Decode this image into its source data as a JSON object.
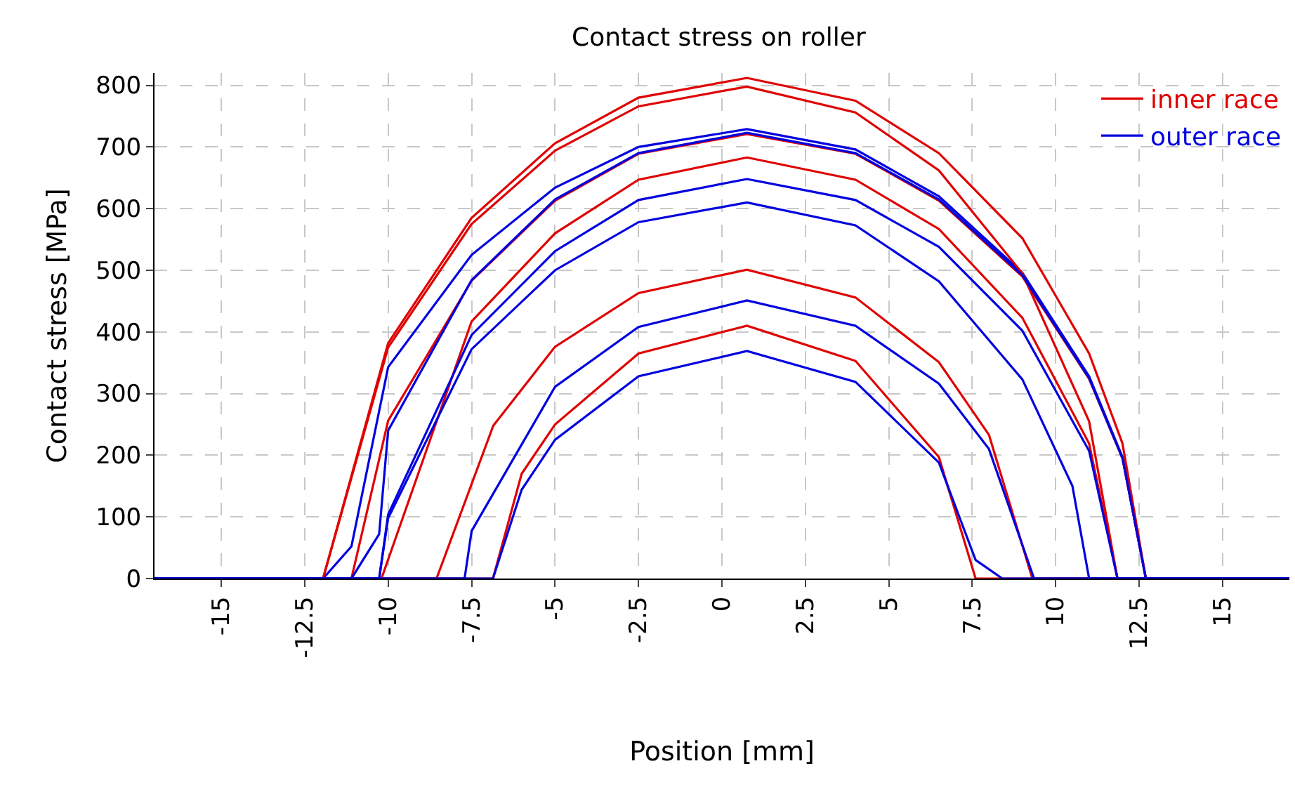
{
  "chart_data": {
    "type": "line",
    "title": "Contact stress on roller",
    "xlabel": "Position [mm]",
    "ylabel": "Contact stress [MPa]",
    "xlim": [
      -17,
      17
    ],
    "ylim": [
      0,
      820
    ],
    "xticks": [
      -15,
      -12.5,
      -10,
      -7.5,
      -5,
      -2.5,
      0,
      2.5,
      5,
      7.5,
      10,
      12.5,
      15
    ],
    "yticks": [
      0,
      100,
      200,
      300,
      400,
      500,
      600,
      700,
      800
    ],
    "grid": true,
    "legend": "top right",
    "marker": "none",
    "line_style": "solid",
    "series": [
      {
        "name": "inner race",
        "color": "#e00000",
        "x": [
          -17,
          -11.95,
          -10,
          -7.5,
          -5,
          -2.5,
          0.75,
          4,
          6.5,
          9,
          11,
          12,
          12.7,
          17
        ],
        "values": [
          0,
          0,
          382,
          585,
          706,
          780,
          812,
          775,
          690,
          552,
          365,
          219,
          0,
          0
        ]
      },
      {
        "name": "outer race",
        "color": "#0000e0",
        "x": [
          -17,
          -11.95,
          -11.1,
          -10,
          -7.5,
          -5,
          -2.5,
          0.75,
          4,
          6.5,
          9,
          11,
          12,
          12.7,
          17
        ],
        "values": [
          0,
          0,
          52,
          343,
          525,
          634,
          700,
          729,
          696,
          620,
          496,
          328,
          197,
          0,
          0
        ]
      },
      {
        "color": "#e00000",
        "x": [
          -17,
          -11.95,
          -10,
          -7.5,
          -5,
          -2.5,
          0.75,
          4,
          6.5,
          9,
          11,
          11.85,
          17
        ],
        "values": [
          0,
          0,
          375,
          575,
          694,
          766,
          798,
          756,
          662,
          495,
          255,
          0,
          0
        ]
      },
      {
        "color": "#e00000",
        "x": [
          -17,
          -11.1,
          -10,
          -7.5,
          -5,
          -2.5,
          0.75,
          4,
          6.5,
          9,
          11,
          12,
          12.7,
          17
        ],
        "values": [
          0,
          0,
          256,
          483,
          613,
          689,
          721,
          689,
          613,
          490,
          324,
          195,
          0,
          0
        ]
      },
      {
        "color": "#e00000",
        "x": [
          -17,
          -10.2,
          -7.5,
          -5,
          -2.5,
          0.75,
          4,
          6.5,
          9,
          11,
          11.85,
          17
        ],
        "values": [
          0,
          0,
          417,
          560,
          647,
          683,
          647,
          567,
          423,
          219,
          0,
          0
        ]
      },
      {
        "color": "#e00000",
        "x": [
          -17,
          -8.55,
          -6.85,
          -5,
          -2.5,
          0.75,
          4,
          6.5,
          8,
          9.3,
          17
        ],
        "values": [
          0,
          0,
          248,
          376,
          463,
          501,
          456,
          351,
          233,
          0,
          0
        ]
      },
      {
        "color": "#e00000",
        "x": [
          -17,
          -6.86,
          -6,
          -5,
          -2.5,
          0.75,
          4,
          6.5,
          7.6,
          17
        ],
        "values": [
          0,
          0,
          170,
          250,
          365,
          410,
          353,
          197,
          0,
          0
        ]
      },
      {
        "color": "#0000e0",
        "x": [
          -17,
          -11.1,
          -10.27,
          -10,
          -7.5,
          -5,
          -2.5,
          0.75,
          4,
          6.5,
          9,
          11,
          12,
          12.7,
          17
        ],
        "values": [
          0,
          0,
          72,
          240,
          484,
          615,
          690,
          723,
          690,
          615,
          492,
          325,
          195,
          0,
          0
        ]
      },
      {
        "color": "#0000e0",
        "x": [
          -17,
          -10.27,
          -10,
          -7.5,
          -5,
          -2.5,
          0.75,
          4,
          6.5,
          9,
          11,
          11.85,
          17
        ],
        "values": [
          0,
          0,
          104,
          395,
          531,
          614,
          648,
          614,
          538,
          402,
          207,
          0,
          0
        ]
      },
      {
        "color": "#0000e0",
        "x": [
          -17,
          -10.27,
          -10,
          -7.5,
          -5,
          -2.5,
          0.75,
          4,
          6.5,
          9,
          10.5,
          11,
          17
        ],
        "values": [
          0,
          0,
          98,
          372,
          500,
          578,
          610,
          573,
          482,
          323,
          150,
          0,
          0
        ]
      },
      {
        "color": "#0000e0",
        "x": [
          -17,
          -7.71,
          -7.5,
          -5,
          -2.5,
          0.75,
          4,
          6.5,
          8,
          9.35,
          17
        ],
        "values": [
          0,
          0,
          77,
          311,
          408,
          451,
          410,
          316,
          210,
          0,
          0
        ]
      },
      {
        "color": "#0000e0",
        "x": [
          -17,
          -6.86,
          -6,
          -5,
          -2.5,
          0.75,
          4,
          6.5,
          7.6,
          8.4,
          17
        ],
        "values": [
          0,
          0,
          144,
          225,
          328,
          369,
          319,
          188,
          30,
          0,
          0
        ]
      }
    ]
  }
}
